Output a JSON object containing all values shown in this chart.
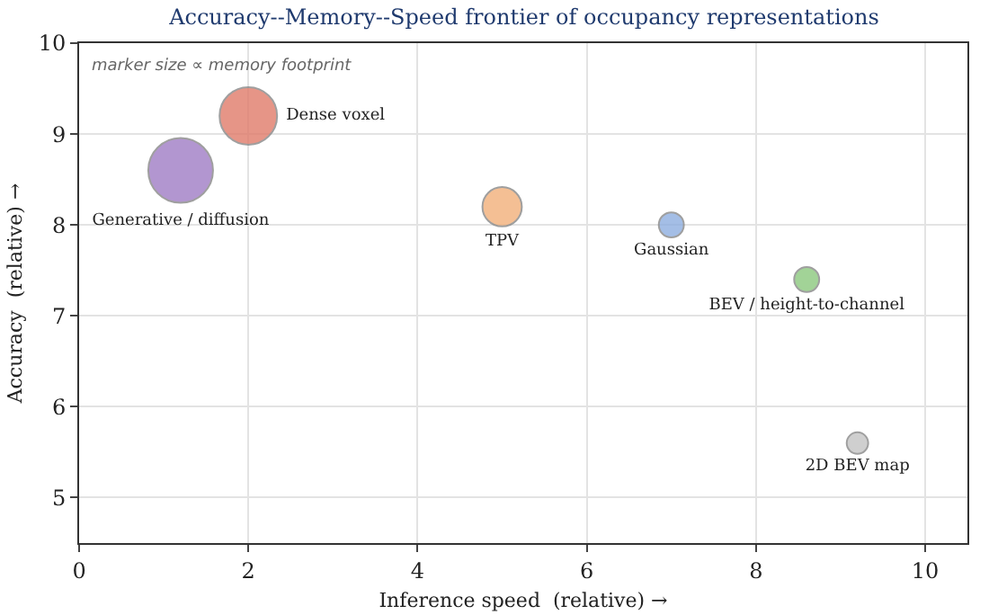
{
  "chart_data": {
    "type": "bubble",
    "title": "Accuracy--Memory--Speed frontier of occupancy representations",
    "xlabel": "Inference speed  (relative) →",
    "ylabel": "Accuracy  (relative) →",
    "annotations": [
      "marker size ∝ memory footprint"
    ],
    "series": [
      {
        "name": "Dense voxel",
        "color": "#e07b6a",
        "x": [
          2
        ],
        "values": [
          9.2
        ],
        "sizes": [
          0.79
        ]
      },
      {
        "name": "Generative / diffusion",
        "color": "#a07cc5",
        "x": [
          1.2
        ],
        "values": [
          8.6
        ],
        "sizes": [
          1
        ]
      },
      {
        "name": "TPV",
        "color": "#f2b07a",
        "x": [
          5
        ],
        "values": [
          8.2
        ],
        "sizes": [
          0.37
        ]
      },
      {
        "name": "Gaussian",
        "color": "#8eaee0",
        "x": [
          7
        ],
        "values": [
          8.0
        ],
        "sizes": [
          0.15
        ]
      },
      {
        "name": "BEV / height-to-channel",
        "color": "#8cc97e",
        "x": [
          8.6
        ],
        "values": [
          7.4
        ],
        "sizes": [
          0.15
        ]
      },
      {
        "name": "2D BEV map",
        "color": "#c4c4c4",
        "x": [
          9.2
        ],
        "values": [
          5.6
        ],
        "sizes": [
          0.11
        ]
      }
    ],
    "xlim": [
      0,
      10.5
    ],
    "xticks": [
      0,
      2,
      4,
      6,
      8,
      10
    ],
    "ylim": [
      4.5,
      10
    ],
    "yticks": [
      5,
      6,
      7,
      8,
      9,
      10
    ],
    "grid": true,
    "legend": false,
    "marker": "circle"
  }
}
